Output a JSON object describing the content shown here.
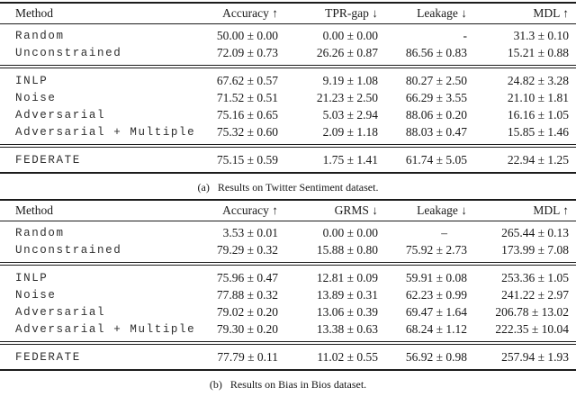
{
  "page": {
    "background": "#ffffff",
    "text_color": "#191919",
    "rule_color": "#1c1c1c"
  },
  "tables": [
    {
      "id": "a",
      "caption": {
        "label": "(a)",
        "text": "Results on Twitter Sentiment dataset."
      },
      "columns": [
        "Method",
        "Accuracy ↑",
        "TPR-gap ↓",
        "Leakage ↓",
        "MDL ↑"
      ],
      "sections": [
        {
          "rows": [
            {
              "method": "Random",
              "values": [
                "50.00 ± 0.00",
                "0.00 ± 0.00",
                "-",
                "31.3 ± 0.10"
              ]
            },
            {
              "method": "Unconstrained",
              "values": [
                "72.09 ± 0.73",
                "26.26 ± 0.87",
                "86.56 ± 0.83",
                "15.21 ± 0.88"
              ]
            }
          ]
        },
        {
          "rows": [
            {
              "method": "INLP",
              "values": [
                "67.62 ± 0.57",
                "9.19 ± 1.08",
                "80.27 ± 2.50",
                "24.82 ± 3.28"
              ]
            },
            {
              "method": "Noise",
              "values": [
                "71.52 ± 0.51",
                "21.23 ± 2.50",
                "66.29 ± 3.55",
                "21.10 ± 1.81"
              ]
            },
            {
              "method": "Adversarial",
              "values": [
                "75.16 ± 0.65",
                "5.03 ± 2.94",
                "88.06 ± 0.20",
                "16.16 ± 1.05"
              ]
            },
            {
              "method": "Adversarial + Multiple",
              "values": [
                "75.32 ± 0.60",
                "2.09 ± 1.18",
                "88.03 ± 0.47",
                "15.85 ± 1.46"
              ]
            }
          ]
        },
        {
          "rows": [
            {
              "method": "FEDERATE",
              "values": [
                "75.15 ± 0.59",
                "1.75 ± 1.41",
                "61.74 ± 5.05",
                "22.94 ± 1.25"
              ]
            }
          ]
        }
      ]
    },
    {
      "id": "b",
      "caption": {
        "label": "(b)",
        "text": "Results on Bias in Bios dataset."
      },
      "columns": [
        "Method",
        "Accuracy ↑",
        "GRMS ↓",
        "Leakage ↓",
        "MDL ↑"
      ],
      "sections": [
        {
          "rows": [
            {
              "method": "Random",
              "values": [
                "3.53 ± 0.01",
                "0.00 ± 0.00",
                "–",
                "265.44 ± 0.13"
              ]
            },
            {
              "method": "Unconstrained",
              "values": [
                "79.29 ± 0.32",
                "15.88 ± 0.80",
                "75.92 ± 2.73",
                "173.99 ± 7.08"
              ]
            }
          ]
        },
        {
          "rows": [
            {
              "method": "INLP",
              "values": [
                "75.96 ± 0.47",
                "12.81 ± 0.09",
                "59.91 ± 0.08",
                "253.36 ± 1.05"
              ]
            },
            {
              "method": "Noise",
              "values": [
                "77.88 ± 0.32",
                "13.89 ± 0.31",
                "62.23 ± 0.99",
                "241.22 ± 2.97"
              ]
            },
            {
              "method": "Adversarial",
              "values": [
                "79.02 ± 0.20",
                "13.06 ± 0.39",
                "69.47 ± 1.64",
                "206.78 ± 13.02"
              ]
            },
            {
              "method": "Adversarial + Multiple",
              "values": [
                "79.30 ± 0.20",
                "13.38 ± 0.63",
                "68.24 ± 1.12",
                "222.35 ± 10.04"
              ]
            }
          ]
        },
        {
          "rows": [
            {
              "method": "FEDERATE",
              "values": [
                "77.79 ± 0.11",
                "11.02 ± 0.55",
                "56.92 ± 0.98",
                "257.94 ± 1.93"
              ]
            }
          ]
        }
      ]
    }
  ]
}
